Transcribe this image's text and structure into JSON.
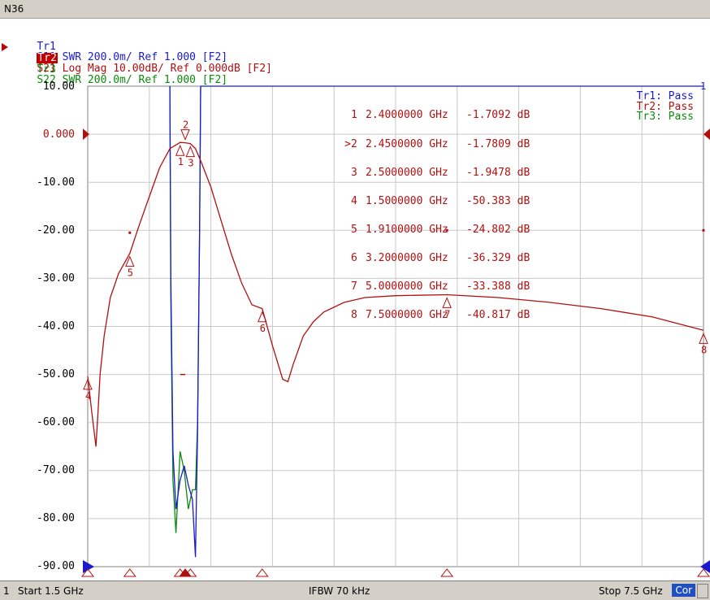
{
  "window": {
    "title": "N36"
  },
  "traces": [
    {
      "id": "Tr1",
      "label": "Tr1",
      "text": "S11 SWR 200.0m/ Ref 1.000 [F2]",
      "color": "#1a1acc",
      "active": false
    },
    {
      "id": "Tr2",
      "label": "Tr2",
      "text": "S21 Log Mag 10.00dB/ Ref 0.000dB [F2]",
      "color": "#b01010",
      "active": true
    },
    {
      "id": "Tr3",
      "label": "Tr3",
      "text": "S22 SWR 200.0m/ Ref 1.000 [F2]",
      "color": "#0b8a0b",
      "active": false
    }
  ],
  "y_axis_labels": [
    "10.00",
    "0.000",
    "-10.00",
    "-20.00",
    "-30.00",
    "-40.00",
    "-50.00",
    "-60.00",
    "-70.00",
    "-80.00",
    "-90.00"
  ],
  "markers": [
    {
      "num": "1",
      "prefix": "",
      "freq": "2.4000000 GHz",
      "value": "-1.7092 dB"
    },
    {
      "num": "2",
      "prefix": ">",
      "freq": "2.4500000 GHz",
      "value": "-1.7809 dB"
    },
    {
      "num": "3",
      "prefix": "",
      "freq": "2.5000000 GHz",
      "value": "-1.9478 dB"
    },
    {
      "num": "4",
      "prefix": "",
      "freq": "1.5000000 GHz",
      "value": "-50.383 dB"
    },
    {
      "num": "5",
      "prefix": "",
      "freq": "1.9100000 GHz",
      "value": "-24.802 dB"
    },
    {
      "num": "6",
      "prefix": "",
      "freq": "3.2000000 GHz",
      "value": "-36.329 dB"
    },
    {
      "num": "7",
      "prefix": "",
      "freq": "5.0000000 GHz",
      "value": "-33.388 dB"
    },
    {
      "num": "8",
      "prefix": "",
      "freq": "7.5000000 GHz",
      "value": "-40.817 dB"
    }
  ],
  "limit_status": [
    {
      "text": "Tr1: Pass",
      "color": "#1a1acc"
    },
    {
      "text": "Tr2: Pass",
      "color": "#b01010"
    },
    {
      "text": "Tr3: Pass",
      "color": "#0b8a0b"
    }
  ],
  "status": {
    "channel": "1",
    "start": "Start 1.5 GHz",
    "ifbw": "IFBW 70 kHz",
    "stop": "Stop 7.5 GHz",
    "cor": "Cor"
  },
  "chart_data": {
    "type": "line",
    "x_unit": "GHz",
    "xlim": [
      1.5,
      7.5
    ],
    "ylim": [
      -90,
      10
    ],
    "y_ticks": [
      10,
      0,
      -10,
      -20,
      -30,
      -40,
      -50,
      -60,
      -70,
      -80,
      -90
    ],
    "series": [
      {
        "name": "S21",
        "color": "#b01010",
        "x": [
          1.5,
          1.54,
          1.58,
          1.6,
          1.62,
          1.66,
          1.72,
          1.8,
          1.91,
          2.0,
          2.1,
          2.2,
          2.3,
          2.4,
          2.45,
          2.5,
          2.55,
          2.6,
          2.7,
          2.8,
          2.9,
          3.0,
          3.1,
          3.2,
          3.3,
          3.4,
          3.45,
          3.5,
          3.6,
          3.7,
          3.8,
          4.0,
          4.2,
          4.5,
          5.0,
          5.5,
          6.0,
          6.5,
          7.0,
          7.5
        ],
        "y": [
          -50.4,
          -58,
          -65,
          -58,
          -50,
          -42,
          -34,
          -29,
          -24.8,
          -19,
          -13,
          -7,
          -3,
          -1.71,
          -1.78,
          -1.95,
          -3,
          -5.5,
          -11,
          -18,
          -25,
          -31,
          -35.5,
          -36.3,
          -44,
          -51,
          -51.5,
          -48,
          -42,
          -39,
          -37,
          -35,
          -34,
          -33.6,
          -33.4,
          -34,
          -35,
          -36.3,
          -38,
          -40.8
        ]
      },
      {
        "name": "S11",
        "color": "#1a1acc",
        "x": [
          2.3,
          2.31,
          2.33,
          2.36,
          2.4,
          2.44,
          2.48,
          2.52,
          2.55,
          2.57,
          2.59,
          2.6
        ],
        "y": [
          10,
          -30,
          -66,
          -78,
          -72,
          -69,
          -73,
          -76,
          -88,
          -62,
          -20,
          10
        ]
      },
      {
        "name": "S22",
        "color": "#0b8a0b",
        "x": [
          2.3,
          2.31,
          2.33,
          2.36,
          2.4,
          2.44,
          2.48,
          2.52,
          2.55,
          2.57,
          2.59,
          2.6
        ],
        "y": [
          10,
          -35,
          -72,
          -83,
          -66,
          -70,
          -78,
          -74,
          -74,
          -60,
          -20,
          10
        ]
      }
    ],
    "markers": [
      {
        "num": "1",
        "x": 2.4,
        "y": -1.7092
      },
      {
        "num": "2",
        "x": 2.45,
        "y": -1.7809
      },
      {
        "num": "3",
        "x": 2.5,
        "y": -1.9478
      },
      {
        "num": "4",
        "x": 1.5,
        "y": -50.383
      },
      {
        "num": "5",
        "x": 1.91,
        "y": -24.802
      },
      {
        "num": "6",
        "x": 3.2,
        "y": -36.329
      },
      {
        "num": "7",
        "x": 5.0,
        "y": -33.388
      },
      {
        "num": "8",
        "x": 7.5,
        "y": -40.817
      }
    ],
    "grid": true
  }
}
